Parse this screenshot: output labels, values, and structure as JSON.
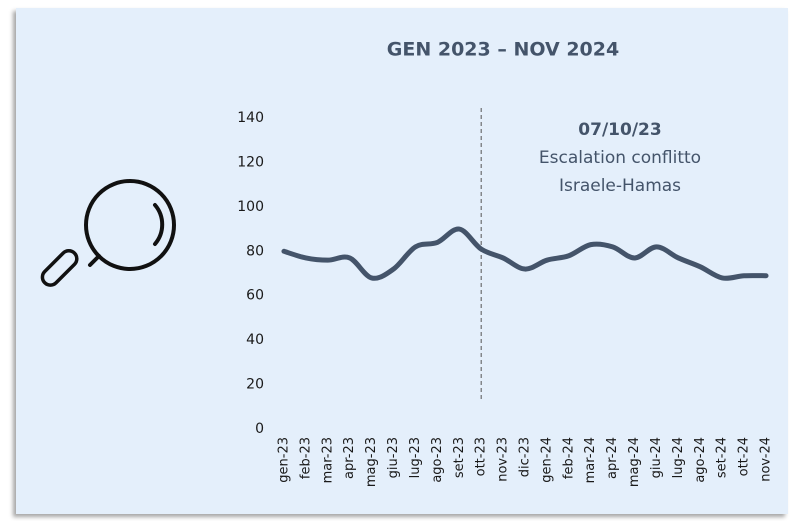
{
  "chart_data": {
    "type": "line",
    "title": "GEN 2023 – NOV 2024",
    "categories": [
      "gen-23",
      "feb-23",
      "mar-23",
      "apr-23",
      "mag-23",
      "giu-23",
      "lug-23",
      "ago-23",
      "set-23",
      "ott-23",
      "nov-23",
      "dic-23",
      "gen-24",
      "feb-24",
      "mar-24",
      "apr-24",
      "mag-24",
      "giu-24",
      "lug-24",
      "ago-24",
      "set-24",
      "ott-24",
      "nov-24"
    ],
    "series": [
      {
        "color": "#44546a",
        "values": [
          80,
          77,
          76,
          77,
          68,
          72,
          82,
          84,
          90,
          81,
          77,
          72,
          76,
          78,
          83,
          82,
          77,
          82,
          77,
          73,
          68,
          69,
          69
        ]
      }
    ],
    "ylim": [
      0,
      140
    ],
    "yticks": [
      0,
      20,
      40,
      60,
      80,
      100,
      120,
      140
    ],
    "grid": false,
    "annotation": {
      "x": "ott-23",
      "lines": [
        "07/10/23",
        "Escalation conflitto",
        "Israele-Hamas"
      ]
    }
  }
}
